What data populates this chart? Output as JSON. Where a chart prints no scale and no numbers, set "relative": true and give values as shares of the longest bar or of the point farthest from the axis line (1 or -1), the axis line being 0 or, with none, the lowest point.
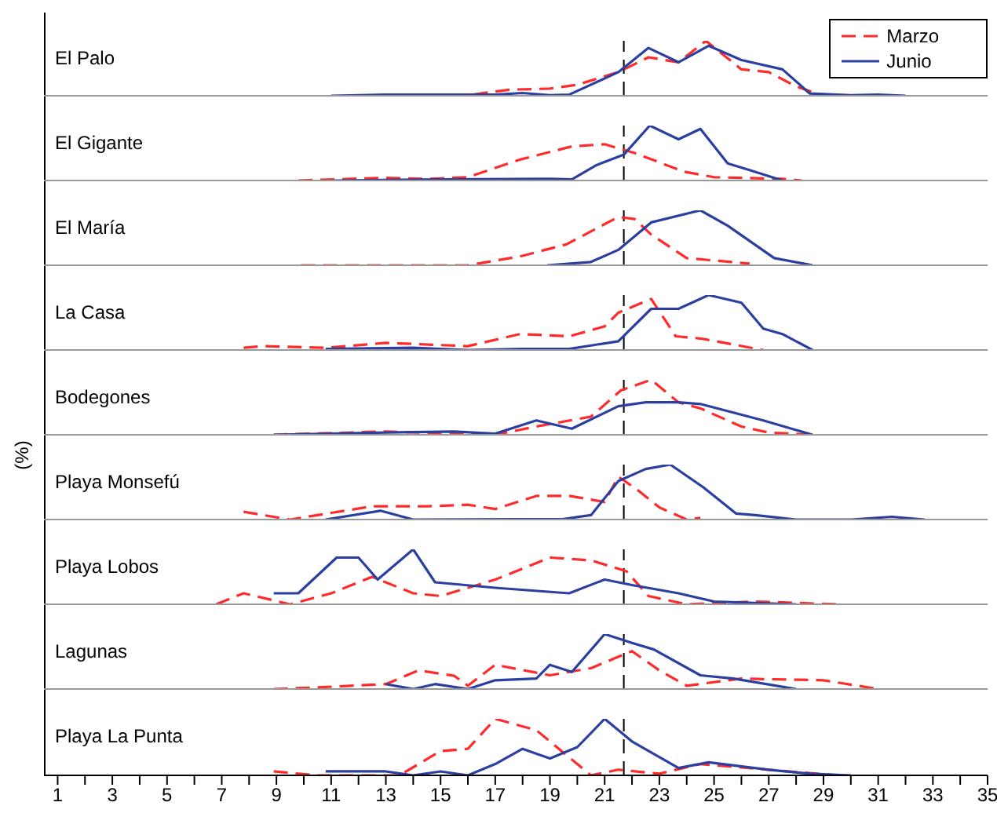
{
  "chart_data": [
    {
      "type": "line",
      "title": "El Palo",
      "relative": true,
      "xlim": [
        0.5,
        35
      ],
      "tick_labels": false,
      "legend": "top right",
      "ref_lines": [
        {
          "axis": "x",
          "value": 21.7,
          "line_style": "dashed"
        }
      ],
      "series": [
        {
          "name": "Marzo",
          "color": "#ff2a2a",
          "line_style": "dashed",
          "x": [
            13,
            16,
            17.5,
            19,
            20,
            21.5,
            22.6,
            23.7,
            24.7,
            26,
            27,
            28,
            29
          ],
          "values": [
            0,
            0.01,
            0.11,
            0.13,
            0.2,
            0.43,
            0.7,
            0.61,
            1,
            0.48,
            0.43,
            0.17,
            0
          ]
        },
        {
          "name": "Junio",
          "color": "#2b3fa0",
          "line_style": "solid",
          "x": [
            11,
            12,
            13,
            15,
            17,
            18,
            19,
            19.7,
            21.5,
            22.6,
            23.7,
            24.8,
            26,
            27.5,
            28.5,
            30,
            31,
            32
          ],
          "values": [
            0,
            0.01,
            0.02,
            0.02,
            0.02,
            0.05,
            0.01,
            0.02,
            0.43,
            0.87,
            0.61,
            0.91,
            0.65,
            0.48,
            0.04,
            0.01,
            0.02,
            0
          ]
        }
      ]
    },
    {
      "type": "line",
      "title": "El Gigante",
      "relative": true,
      "xlim": [
        0.5,
        35
      ],
      "tick_labels": false,
      "ref_lines": [
        {
          "axis": "x",
          "value": 21.7,
          "line_style": "dashed"
        }
      ],
      "series": [
        {
          "color": "#ff2a2a",
          "line_style": "dashed",
          "x": [
            9.8,
            13,
            14.5,
            16,
            17.9,
            19.8,
            21,
            22.1,
            23.9,
            25,
            27.5,
            28.2
          ],
          "values": [
            0,
            0.05,
            0.03,
            0.06,
            0.38,
            0.62,
            0.66,
            0.5,
            0.16,
            0.06,
            0.03,
            0
          ]
        },
        {
          "color": "#2b3fa0",
          "line_style": "solid",
          "x": [
            11.1,
            15,
            19,
            19.8,
            20.7,
            21.7,
            22.65,
            23.7,
            24.5,
            25.5,
            26.3,
            27.5
          ],
          "values": [
            0,
            0.02,
            0.03,
            0.02,
            0.28,
            0.47,
            1,
            0.75,
            0.94,
            0.31,
            0.19,
            0
          ]
        }
      ]
    },
    {
      "type": "line",
      "title": "El María",
      "relative": true,
      "xlim": [
        0.5,
        35
      ],
      "tick_labels": false,
      "ref_lines": [
        {
          "axis": "x",
          "value": 21.7,
          "line_style": "dashed"
        }
      ],
      "series": [
        {
          "color": "#ff2a2a",
          "line_style": "dashed",
          "x": [
            9.9,
            16,
            17.9,
            19.6,
            21.5,
            22.1,
            22.7,
            24,
            26.3
          ],
          "values": [
            0,
            0,
            0.16,
            0.38,
            0.88,
            0.84,
            0.56,
            0.13,
            0.03
          ]
        },
        {
          "color": "#2b3fa0",
          "line_style": "solid",
          "x": [
            18.9,
            20.5,
            21.5,
            22.7,
            24.5,
            25.5,
            27.2,
            28.6
          ],
          "values": [
            0,
            0.06,
            0.28,
            0.78,
            1,
            0.72,
            0.13,
            0
          ]
        }
      ]
    },
    {
      "type": "line",
      "title": "La Casa",
      "relative": true,
      "xlim": [
        0.5,
        35
      ],
      "tick_labels": false,
      "ref_lines": [
        {
          "axis": "x",
          "value": 21.7,
          "line_style": "dashed"
        }
      ],
      "series": [
        {
          "color": "#ff2a2a",
          "line_style": "dashed",
          "x": [
            7.8,
            8.5,
            10.8,
            13,
            16,
            17.9,
            19.7,
            21,
            21.5,
            22.7,
            23.6,
            24.5,
            26.8
          ],
          "values": [
            0.04,
            0.07,
            0.04,
            0.13,
            0.07,
            0.29,
            0.25,
            0.43,
            0.68,
            0.93,
            0.25,
            0.21,
            0
          ]
        },
        {
          "color": "#2b3fa0",
          "line_style": "solid",
          "x": [
            10.8,
            14,
            16,
            18,
            19.7,
            21.5,
            22.7,
            23.7,
            24.8,
            26,
            26.8,
            27.5,
            28.6
          ],
          "values": [
            0.02,
            0.04,
            0,
            0.02,
            0.02,
            0.16,
            0.75,
            0.75,
            1,
            0.86,
            0.39,
            0.29,
            0
          ]
        }
      ]
    },
    {
      "type": "line",
      "title": "Bodegones",
      "relative": true,
      "xlim": [
        0.5,
        35
      ],
      "tick_labels": false,
      "ref_lines": [
        {
          "axis": "x",
          "value": 21.7,
          "line_style": "dashed"
        }
      ],
      "series": [
        {
          "color": "#ff2a2a",
          "line_style": "dashed",
          "x": [
            8.9,
            13,
            17,
            18.5,
            20.5,
            21.6,
            22.7,
            23.7,
            24.5,
            26,
            27,
            28.6
          ],
          "values": [
            0,
            0.06,
            0,
            0.15,
            0.33,
            0.81,
            1,
            0.59,
            0.48,
            0.15,
            0.04,
            0
          ]
        },
        {
          "color": "#2b3fa0",
          "line_style": "solid",
          "x": [
            8.9,
            13,
            15.5,
            17,
            18.5,
            19.8,
            21.5,
            22.5,
            23.7,
            24.5,
            26.8,
            28.6
          ],
          "values": [
            0,
            0.04,
            0.06,
            0.02,
            0.26,
            0.11,
            0.52,
            0.59,
            0.59,
            0.56,
            0.26,
            0
          ]
        }
      ]
    },
    {
      "type": "line",
      "title": "Playa Monsefú",
      "ylabel": "(%)",
      "relative": true,
      "xlim": [
        0.5,
        35
      ],
      "tick_labels": false,
      "ref_lines": [
        {
          "axis": "x",
          "value": 21.7,
          "line_style": "dashed"
        }
      ],
      "series": [
        {
          "color": "#ff2a2a",
          "line_style": "dashed",
          "x": [
            7.8,
            9.5,
            12.5,
            14.5,
            16,
            17,
            18.5,
            19.7,
            21,
            21.5,
            22.2,
            23,
            24,
            24.5
          ],
          "values": [
            0.14,
            0,
            0.24,
            0.24,
            0.27,
            0.19,
            0.43,
            0.43,
            0.32,
            0.78,
            0.54,
            0.22,
            0,
            0.03
          ]
        },
        {
          "color": "#2b3fa0",
          "line_style": "solid",
          "x": [
            10.8,
            12.8,
            14,
            19.5,
            20.5,
            21.5,
            22.5,
            23.4,
            24.6,
            25.8,
            26.5,
            28,
            30,
            31.5,
            32.7
          ],
          "values": [
            0,
            0.16,
            0,
            0.01,
            0.08,
            0.7,
            0.92,
            1,
            0.59,
            0.11,
            0.08,
            0,
            0,
            0.05,
            0
          ]
        }
      ]
    },
    {
      "type": "line",
      "title": "Playa Lobos",
      "relative": true,
      "xlim": [
        0.5,
        35
      ],
      "tick_labels": false,
      "ref_lines": [
        {
          "axis": "x",
          "value": 21.7,
          "line_style": "dashed"
        }
      ],
      "series": [
        {
          "color": "#ff2a2a",
          "line_style": "dashed",
          "x": [
            6.8,
            7.8,
            9.5,
            11,
            12.5,
            14,
            15,
            17,
            19,
            20.5,
            21.8,
            22.6,
            24,
            26.5,
            29.5
          ],
          "values": [
            0,
            0.2,
            0,
            0.2,
            0.5,
            0.2,
            0.15,
            0.45,
            0.85,
            0.8,
            0.6,
            0.15,
            0,
            0.05,
            0
          ]
        },
        {
          "color": "#2b3fa0",
          "line_style": "solid",
          "x": [
            8.9,
            9.8,
            11.2,
            12,
            12.7,
            14,
            14.8,
            17,
            19.7,
            21,
            22,
            23.7,
            25,
            28
          ],
          "values": [
            0.2,
            0.2,
            0.85,
            0.85,
            0.45,
            1,
            0.4,
            0.3,
            0.2,
            0.45,
            0.35,
            0.2,
            0.05,
            0
          ]
        }
      ]
    },
    {
      "type": "line",
      "title": "Lagunas",
      "relative": true,
      "xlim": [
        0.5,
        35
      ],
      "tick_labels": false,
      "ref_lines": [
        {
          "axis": "x",
          "value": 21.7,
          "line_style": "dashed"
        }
      ],
      "series": [
        {
          "color": "#ff2a2a",
          "line_style": "dashed",
          "x": [
            8.9,
            10.5,
            13,
            14.2,
            15.5,
            16,
            17,
            19,
            20.5,
            22,
            23,
            24,
            26,
            29,
            31
          ],
          "values": [
            0,
            0.03,
            0.09,
            0.34,
            0.24,
            0.06,
            0.44,
            0.25,
            0.38,
            0.69,
            0.34,
            0.06,
            0.19,
            0.16,
            0
          ]
        },
        {
          "color": "#2b3fa0",
          "line_style": "solid",
          "x": [
            13,
            14,
            14.8,
            16,
            17,
            18.5,
            19,
            19.8,
            21,
            22,
            22.8,
            24.5,
            25.7,
            28
          ],
          "values": [
            0.09,
            0,
            0.09,
            0,
            0.16,
            0.19,
            0.44,
            0.31,
            1,
            0.84,
            0.72,
            0.25,
            0.19,
            0
          ]
        }
      ]
    },
    {
      "type": "line",
      "title": "Playa La Punta",
      "relative": true,
      "xlim": [
        0.5,
        35
      ],
      "tick_labels": "x",
      "xticks": [
        1,
        {
          "value": 2,
          "label": null
        },
        3,
        {
          "value": 4,
          "label": null
        },
        5,
        {
          "value": 6,
          "label": null
        },
        7,
        {
          "value": 8,
          "label": null
        },
        9,
        {
          "value": 10,
          "label": null
        },
        11,
        {
          "value": 12,
          "label": null
        },
        13,
        {
          "value": 14,
          "label": null
        },
        15,
        {
          "value": 16,
          "label": null
        },
        17,
        {
          "value": 18,
          "label": null
        },
        19,
        {
          "value": 20,
          "label": null
        },
        21,
        {
          "value": 22,
          "label": null
        },
        23,
        {
          "value": 24,
          "label": null
        },
        25,
        {
          "value": 26,
          "label": null
        },
        27,
        {
          "value": 28,
          "label": null
        },
        29,
        {
          "value": 30,
          "label": null
        },
        31,
        {
          "value": 32,
          "label": null
        },
        33,
        {
          "value": 34,
          "label": null
        },
        35
      ],
      "ref_lines": [
        {
          "axis": "x",
          "value": 21.7,
          "line_style": "dashed"
        }
      ],
      "series": [
        {
          "color": "#ff2a2a",
          "line_style": "dashed",
          "x": [
            8.9,
            10.5,
            13.5,
            15,
            16,
            17,
            18.5,
            19.5,
            20.5,
            21.5,
            23,
            24.5,
            27,
            29.5
          ],
          "values": [
            0.07,
            0,
            0,
            0.43,
            0.47,
            1,
            0.8,
            0.4,
            0,
            0.1,
            0.03,
            0.2,
            0.1,
            0
          ]
        },
        {
          "color": "#2b3fa0",
          "line_style": "solid",
          "x": [
            10.8,
            13,
            14,
            15,
            16,
            17,
            18,
            19,
            20,
            21,
            22,
            23.7,
            24.8,
            27,
            28.5,
            30
          ],
          "values": [
            0.07,
            0.07,
            0,
            0.07,
            0,
            0.2,
            0.47,
            0.3,
            0.5,
            1,
            0.6,
            0.13,
            0.23,
            0.1,
            0.03,
            0
          ]
        }
      ]
    }
  ]
}
